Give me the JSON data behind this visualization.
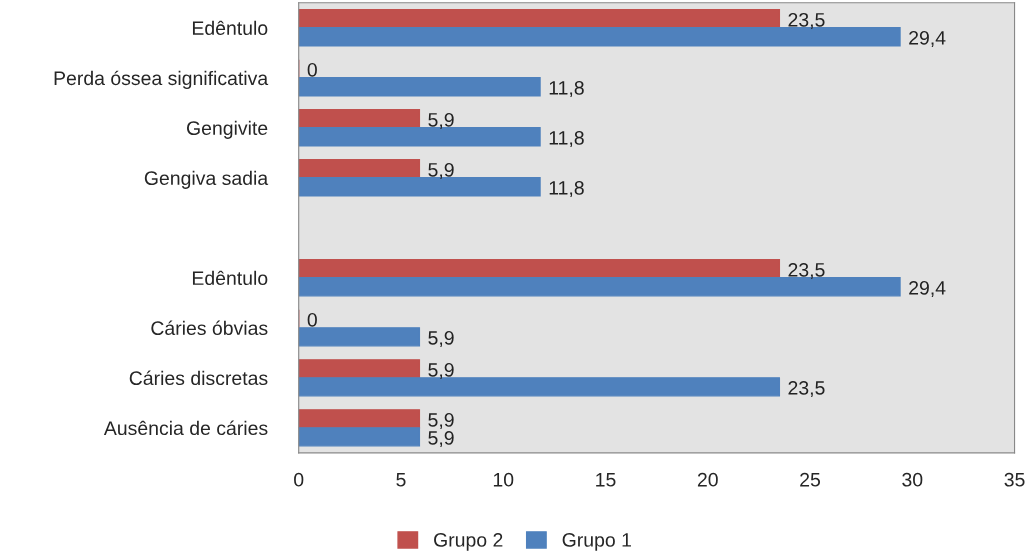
{
  "chart_data": {
    "type": "bar",
    "orientation": "horizontal",
    "categories": [
      "Edêntulo",
      "Perda óssea significativa",
      "Gengivite",
      "Gengiva sadia",
      null,
      "Edêntulo",
      "Cáries óbvias",
      "Cáries discretas",
      "Ausência de cáries"
    ],
    "series": [
      {
        "name": "Grupo 2",
        "color": "#c0504d",
        "values": [
          23.5,
          0,
          5.9,
          5.9,
          null,
          23.5,
          0,
          5.9,
          5.9
        ],
        "value_labels": [
          "23,5",
          "0",
          "5,9",
          "5,9",
          null,
          "23,5",
          "0",
          "5,9",
          "5,9"
        ]
      },
      {
        "name": "Grupo 1",
        "color": "#4f81bd",
        "values": [
          29.4,
          11.8,
          11.8,
          11.8,
          null,
          29.4,
          5.9,
          23.5,
          5.9
        ],
        "value_labels": [
          "29,4",
          "11,8",
          "11,8",
          "11,8",
          null,
          "29,4",
          "5,9",
          "23,5",
          "5,9"
        ]
      }
    ],
    "xlim": [
      0,
      35
    ],
    "xticks": [
      0,
      5,
      10,
      15,
      20,
      25,
      30,
      35
    ],
    "grid": false,
    "legend": "bottom"
  }
}
